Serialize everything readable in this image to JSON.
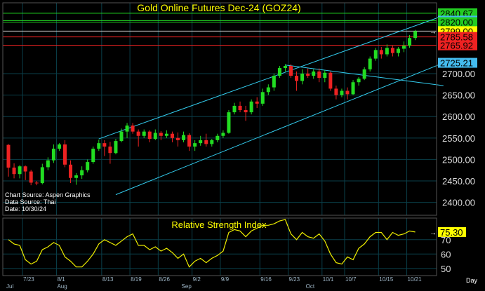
{
  "chart_data": [
    {
      "type": "candlestick",
      "title": "Gold Online Futures Dec-24 (GOZ24)",
      "source_lines": [
        "Chart Source: Aspen Graphics",
        "Data Source: Thai",
        "Date: 10/30/24"
      ],
      "ylim": [
        2370,
        2865
      ],
      "y_ticks": [
        2400,
        2450,
        2500,
        2550,
        2600,
        2650,
        2700
      ],
      "grid": true,
      "candles": [
        [
          2534,
          2536,
          2460,
          2481
        ],
        [
          2481,
          2491,
          2456,
          2466
        ],
        [
          2466,
          2487,
          2456,
          2484
        ],
        [
          2484,
          2486,
          2452,
          2472
        ],
        [
          2472,
          2476,
          2440,
          2446
        ],
        [
          2446,
          2450,
          2440,
          2445
        ],
        [
          2445,
          2490,
          2442,
          2482
        ],
        [
          2482,
          2505,
          2475,
          2498
        ],
        [
          2498,
          2535,
          2492,
          2525
        ],
        [
          2525,
          2538,
          2520,
          2535
        ],
        [
          2535,
          2545,
          2482,
          2488
        ],
        [
          2488,
          2498,
          2445,
          2457
        ],
        [
          2457,
          2468,
          2441,
          2463
        ],
        [
          2463,
          2484,
          2455,
          2475
        ],
        [
          2475,
          2500,
          2470,
          2494
        ],
        [
          2494,
          2530,
          2490,
          2525
        ],
        [
          2525,
          2546,
          2520,
          2538
        ],
        [
          2538,
          2545,
          2508,
          2530
        ],
        [
          2530,
          2541,
          2490,
          2515
        ],
        [
          2515,
          2548,
          2512,
          2543
        ],
        [
          2543,
          2572,
          2540,
          2565
        ],
        [
          2565,
          2585,
          2550,
          2579
        ],
        [
          2579,
          2585,
          2560,
          2565
        ],
        [
          2565,
          2570,
          2530,
          2555
        ],
        [
          2555,
          2570,
          2550,
          2565
        ],
        [
          2565,
          2568,
          2540,
          2548
        ],
        [
          2548,
          2570,
          2545,
          2562
        ],
        [
          2562,
          2566,
          2545,
          2555
        ],
        [
          2555,
          2568,
          2550,
          2560
        ],
        [
          2560,
          2565,
          2540,
          2550
        ],
        [
          2550,
          2563,
          2530,
          2545
        ],
        [
          2545,
          2565,
          2540,
          2557
        ],
        [
          2557,
          2561,
          2520,
          2530
        ],
        [
          2530,
          2545,
          2520,
          2538
        ],
        [
          2538,
          2555,
          2532,
          2545
        ],
        [
          2545,
          2560,
          2530,
          2536
        ],
        [
          2536,
          2548,
          2530,
          2545
        ],
        [
          2545,
          2560,
          2540,
          2555
        ],
        [
          2555,
          2568,
          2550,
          2562
        ],
        [
          2562,
          2615,
          2560,
          2610
        ],
        [
          2610,
          2632,
          2605,
          2625
        ],
        [
          2625,
          2635,
          2610,
          2615
        ],
        [
          2615,
          2625,
          2590,
          2610
        ],
        [
          2610,
          2640,
          2605,
          2635
        ],
        [
          2635,
          2645,
          2620,
          2630
        ],
        [
          2630,
          2665,
          2625,
          2657
        ],
        [
          2657,
          2675,
          2650,
          2668
        ],
        [
          2668,
          2700,
          2660,
          2695
        ],
        [
          2695,
          2718,
          2690,
          2713
        ],
        [
          2713,
          2722,
          2705,
          2718
        ],
        [
          2718,
          2722,
          2690,
          2695
        ],
        [
          2695,
          2705,
          2660,
          2683
        ],
        [
          2683,
          2710,
          2675,
          2700
        ],
        [
          2700,
          2712,
          2690,
          2695
        ],
        [
          2695,
          2710,
          2688,
          2705
        ],
        [
          2705,
          2712,
          2680,
          2690
        ],
        [
          2690,
          2708,
          2680,
          2702
        ],
        [
          2702,
          2705,
          2660,
          2665
        ],
        [
          2665,
          2672,
          2640,
          2650
        ],
        [
          2650,
          2665,
          2645,
          2660
        ],
        [
          2660,
          2668,
          2640,
          2652
        ],
        [
          2652,
          2685,
          2650,
          2680
        ],
        [
          2680,
          2692,
          2672,
          2688
        ],
        [
          2688,
          2715,
          2685,
          2710
        ],
        [
          2710,
          2740,
          2705,
          2735
        ],
        [
          2735,
          2760,
          2730,
          2755
        ],
        [
          2755,
          2762,
          2735,
          2745
        ],
        [
          2745,
          2768,
          2740,
          2760
        ],
        [
          2760,
          2765,
          2740,
          2748
        ],
        [
          2748,
          2762,
          2740,
          2758
        ],
        [
          2758,
          2775,
          2750,
          2765
        ],
        [
          2765,
          2790,
          2760,
          2783
        ],
        [
          2783,
          2802,
          2778,
          2799
        ]
      ],
      "horizontal_levels": [
        {
          "value": 2840.67,
          "color": "#22dd22",
          "label_bg": "#22cc22"
        },
        {
          "value": 2823.47,
          "color": "#22dd22",
          "label_bg": "#44bbee"
        },
        {
          "value": 2820.0,
          "color": "#22dd22",
          "label_bg": "#22cc22"
        },
        {
          "value": 2799.0,
          "color": "#cccccc",
          "label_bg": "#ffff00"
        },
        {
          "value": 2785.58,
          "color": "#ee2222",
          "label_bg": "#ee2222"
        },
        {
          "value": 2765.92,
          "color": "#ee2222",
          "label_bg": "#ee2222"
        },
        {
          "value": 2725.21,
          "color": null,
          "label_bg": "#44bbee"
        }
      ],
      "trend_lines": [
        {
          "from": [
            16,
            2548
          ],
          "to": [
            76,
            2835
          ],
          "color": "#33ccee"
        },
        {
          "from": [
            19,
            2418
          ],
          "to": [
            76,
            2725
          ],
          "color": "#33ccee"
        },
        {
          "from": [
            49,
            2720
          ],
          "to": [
            76,
            2672
          ],
          "color": "#33ccee"
        }
      ],
      "colors": {
        "up": "#22dd22",
        "down": "#ee2222",
        "grid": "#0a3f4a",
        "axis_text": "#dddddd",
        "title": "#ffff00"
      }
    },
    {
      "type": "line",
      "title": "Relative Strength Index",
      "ylim": [
        45,
        85
      ],
      "y_ticks": [
        50,
        60,
        70
      ],
      "last_value": "75.30",
      "values": [
        70,
        67,
        66,
        56,
        53,
        55,
        63,
        65,
        68,
        66,
        58,
        55,
        51,
        51,
        55,
        60,
        67,
        70,
        68,
        66,
        69,
        72,
        74,
        66,
        66,
        63,
        65,
        62,
        64,
        61,
        57,
        60,
        51,
        55,
        57,
        54,
        57,
        59,
        62,
        75,
        77,
        76,
        72,
        76,
        78,
        80,
        80,
        81,
        83,
        84,
        74,
        70,
        75,
        72,
        71,
        74,
        69,
        60,
        54,
        53,
        58,
        56,
        64,
        67,
        72,
        75,
        75,
        70,
        75,
        73,
        74,
        76,
        75.3
      ],
      "x_tick_labels": [
        "7/23",
        "8/1",
        "8/13",
        "8/19",
        "8/26",
        "9/2",
        "9/9",
        "9/16",
        "9/23",
        "10/1",
        "10/7",
        "10/15",
        "10/21"
      ],
      "month_labels": [
        "Jul",
        "Aug",
        "Sep",
        "Oct"
      ],
      "x_axis_unit": "Day",
      "colors": {
        "line": "#eeee00",
        "label_bg": "#ffff00"
      }
    }
  ]
}
